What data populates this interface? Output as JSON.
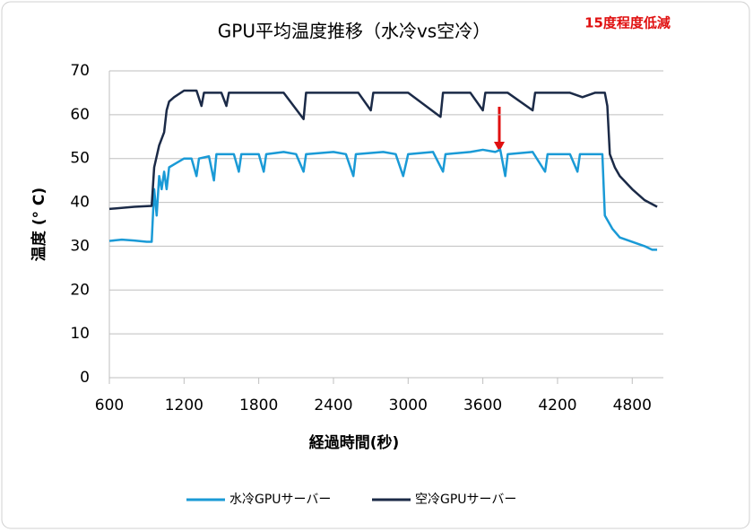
{
  "chart_data": {
    "type": "line",
    "title": "GPU平均温度推移（水冷vs空冷）",
    "annotation": "15度程度低減",
    "x_label": "経過時間(秒)",
    "y_label": "温度 (° C)",
    "xlim": [
      600,
      5050
    ],
    "ylim": [
      0,
      70
    ],
    "xticks": [
      600,
      1200,
      1800,
      2400,
      3000,
      3600,
      4200,
      4800
    ],
    "yticks": [
      0,
      10,
      20,
      30,
      40,
      50,
      60,
      70
    ],
    "grid": true,
    "series": [
      {
        "name": "水冷GPUサーバー",
        "color": "#1a9ad6",
        "x": [
          600,
          700,
          800,
          900,
          940,
          960,
          980,
          1000,
          1020,
          1040,
          1060,
          1080,
          1140,
          1200,
          1260,
          1300,
          1320,
          1400,
          1440,
          1460,
          1600,
          1640,
          1660,
          1800,
          1840,
          1860,
          2000,
          2100,
          2160,
          2180,
          2400,
          2500,
          2560,
          2580,
          2800,
          2900,
          2960,
          3000,
          3200,
          3280,
          3300,
          3500,
          3600,
          3700,
          3740,
          3780,
          3800,
          4000,
          4100,
          4120,
          4300,
          4360,
          4380,
          4500,
          4560,
          4580,
          4640,
          4700,
          4800,
          4900,
          4960,
          5000
        ],
        "values": [
          31.2,
          31.5,
          31.3,
          31,
          31,
          43,
          37,
          46,
          43,
          47,
          43,
          48,
          49,
          50,
          50,
          46,
          50,
          50.5,
          45,
          51,
          51,
          47,
          51,
          51,
          47,
          51,
          51.5,
          51,
          47,
          51,
          51.5,
          51,
          46,
          51,
          51.5,
          51,
          46,
          51,
          51.5,
          47,
          51,
          51.5,
          52,
          51.5,
          52,
          46,
          51,
          51.5,
          47,
          51,
          51,
          47,
          51,
          51,
          51,
          37,
          34,
          32,
          31,
          30,
          29.2,
          29.2
        ]
      },
      {
        "name": "空冷GPUサーバー",
        "color": "#1b2a47",
        "x": [
          600,
          800,
          940,
          960,
          1000,
          1040,
          1060,
          1080,
          1120,
          1200,
          1300,
          1340,
          1360,
          1500,
          1540,
          1560,
          1800,
          2000,
          2160,
          2180,
          2400,
          2600,
          2700,
          2720,
          3000,
          3260,
          3280,
          3500,
          3600,
          3620,
          3800,
          4000,
          4020,
          4300,
          4400,
          4500,
          4580,
          4600,
          4620,
          4660,
          4700,
          4800,
          4900,
          5000
        ],
        "values": [
          38.5,
          39,
          39.2,
          48,
          53,
          56,
          61,
          63,
          64,
          65.5,
          65.5,
          62,
          65,
          65,
          62,
          65,
          65,
          65,
          59,
          65,
          65,
          65,
          61,
          65,
          65,
          59.5,
          65,
          65,
          61,
          65,
          65,
          61,
          65,
          65,
          64,
          65,
          65,
          62,
          51,
          48,
          46,
          43,
          40.5,
          39
        ]
      }
    ]
  }
}
